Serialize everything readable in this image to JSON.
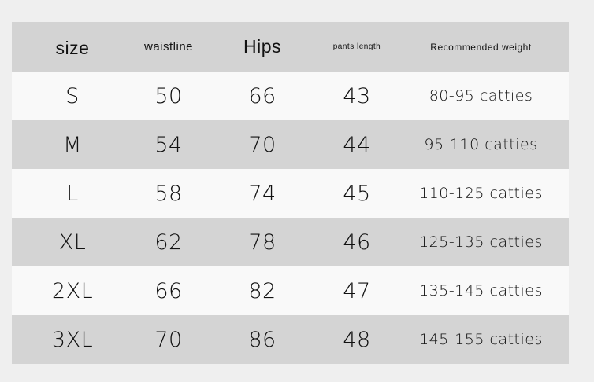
{
  "table": {
    "headers": [
      "size",
      "waistline",
      "Hips",
      "pants length",
      "Recommended weight"
    ],
    "rows": [
      [
        "S",
        "50",
        "66",
        "43",
        "80-95 catties"
      ],
      [
        "M",
        "54",
        "70",
        "44",
        "95-110 catties"
      ],
      [
        "L",
        "58",
        "74",
        "45",
        "110-125 catties"
      ],
      [
        "XL",
        "62",
        "78",
        "46",
        "125-135 catties"
      ],
      [
        "2XL",
        "66",
        "82",
        "47",
        "135-145 catties"
      ],
      [
        "3XL",
        "70",
        "86",
        "48",
        "145-155 catties"
      ]
    ]
  },
  "colors": {
    "background": "#efefef",
    "header": "#d3d3d3",
    "row_light": "#f9f9f9",
    "row_dark": "#d4d4d4"
  }
}
